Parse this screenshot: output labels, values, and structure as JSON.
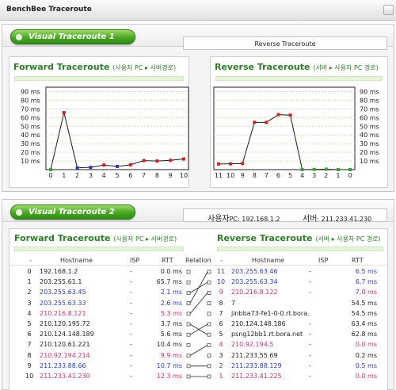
{
  "window": {
    "title": "BenchBee Traceroute"
  },
  "top_panel": {
    "tab_label": "Visual Traceroute 1",
    "right_box": "Reverse Traceroute",
    "forward_chart": {
      "title": "Forward Traceroute",
      "subtitle": "(사용자 PC ▸ 서버경로)"
    },
    "reverse_chart": {
      "title": "Reverse Traceroute",
      "subtitle": "(서버 ▸ 사용자 PC 경로)"
    }
  },
  "bottom_panel": {
    "tab_label": "Visual Traceroute 2",
    "user_label": "사용자",
    "user_value": "PC: 192.168.1.2",
    "server_label": "서버",
    "server_value": ": 211.233.41.230",
    "forward_title": "Forward Traceroute",
    "forward_sub": "(사용자 PC ▸ 서버경로)",
    "reverse_title": "Reverse Traceroute",
    "reverse_sub": "(서버 ▸ 사용자 PC 경로)",
    "headers": [
      "-",
      "Hostname",
      "ISP",
      "RTT",
      "Relation",
      "-",
      "Hostname",
      "ISP",
      "RTT"
    ],
    "forward_rows": [
      {
        "n": "0",
        "host": "192.168.1.2",
        "isp": "-",
        "rtt": "0.0 ms",
        "color": "#222222"
      },
      {
        "n": "1",
        "host": "203.255.61.1",
        "isp": "-",
        "rtt": "65.7 ms",
        "color": "#222222"
      },
      {
        "n": "2",
        "host": "203.255.63.45",
        "isp": "-",
        "rtt": "2.1 ms",
        "color": "#2c3fb0"
      },
      {
        "n": "3",
        "host": "203.255.63.33",
        "isp": "-",
        "rtt": "2.6 ms",
        "color": "#2c3fb0"
      },
      {
        "n": "4",
        "host": "210.216.8.121",
        "isp": "-",
        "rtt": "5.3 ms",
        "color": "#d0306a"
      },
      {
        "n": "5",
        "host": "210.120.195.72",
        "isp": "-",
        "rtt": "3.7 ms",
        "color": "#222222"
      },
      {
        "n": "6",
        "host": "210.124.148.189",
        "isp": "-",
        "rtt": "5.6 ms",
        "color": "#222222"
      },
      {
        "n": "7",
        "host": "210.120.61.221",
        "isp": "-",
        "rtt": "10.4 ms",
        "color": "#222222"
      },
      {
        "n": "8",
        "host": "210.92.194.214",
        "isp": "-",
        "rtt": "9.9 ms",
        "color": "#d0306a"
      },
      {
        "n": "9",
        "host": "211.233.88.66",
        "isp": "-",
        "rtt": "10.7 ms",
        "color": "#2c3fb0"
      },
      {
        "n": "10",
        "host": "211.233.41.230",
        "isp": "-",
        "rtt": "12.3 ms",
        "color": "#d0306a"
      }
    ],
    "reverse_rows": [
      {
        "n": "11",
        "host": "203.255.63.46",
        "isp": "-",
        "rtt": "6.5 ms",
        "color": "#2c3fb0"
      },
      {
        "n": "10",
        "host": "203.255.63.34",
        "isp": "-",
        "rtt": "6.7 ms",
        "color": "#2c3fb0"
      },
      {
        "n": "9",
        "host": "210.216.8.122",
        "isp": "-",
        "rtt": "7.0 ms",
        "color": "#d0306a"
      },
      {
        "n": "8",
        "host": "7",
        "isp": "",
        "rtt": "54.5 ms",
        "color": "#222222"
      },
      {
        "n": "7",
        "host": "jinbba73-fe1-0-0.rt.bora.",
        "isp": "",
        "rtt": "54.5 ms",
        "color": "#222222"
      },
      {
        "n": "6",
        "host": "210.124.148.186",
        "isp": "-",
        "rtt": "63.4 ms",
        "color": "#222222"
      },
      {
        "n": "5",
        "host": "psng12bb1.rt.bora.net",
        "isp": "-",
        "rtt": "62.8 ms",
        "color": "#222222"
      },
      {
        "n": "4",
        "host": "210.92.194.5",
        "isp": "-",
        "rtt": "0.0 ms",
        "color": "#d0306a"
      },
      {
        "n": "3",
        "host": "211.233.55.69",
        "isp": "-",
        "rtt": "0.2 ms",
        "color": "#222222"
      },
      {
        "n": "2",
        "host": "211.233.88.129",
        "isp": "-",
        "rtt": "0.5 ms",
        "color": "#2c3fb0"
      },
      {
        "n": "1",
        "host": "211.233.41.225",
        "isp": "-",
        "rtt": "0.0 ms",
        "color": "#d0306a"
      }
    ]
  },
  "chart_data": [
    {
      "type": "line",
      "title": "Forward Traceroute",
      "x": [
        "0",
        "1",
        "2",
        "3",
        "4",
        "5",
        "6",
        "7",
        "8",
        "9",
        "10"
      ],
      "values": [
        0,
        65.7,
        2.1,
        2.6,
        5.3,
        3.7,
        5.6,
        10.4,
        9.9,
        10.7,
        12.3
      ],
      "marker_colors": [
        "#2fa72f",
        "#cc2222",
        "#2c3fb0",
        "#2c3fb0",
        "#cc2222",
        "#2c3fb0",
        "#cc2222",
        "#cc2222",
        "#cc2222",
        "#cc2222",
        "#cc2222"
      ],
      "yticks": [
        "10 ms",
        "20 ms",
        "30 ms",
        "40 ms",
        "50 ms",
        "60 ms",
        "70 ms",
        "80 ms",
        "90 ms"
      ],
      "ylim": [
        0,
        95
      ],
      "axis_side": "left",
      "grid": true,
      "line_color": "#1a1a1a"
    },
    {
      "type": "line",
      "title": "Reverse Traceroute",
      "x": [
        "11",
        "10",
        "9",
        "8",
        "7",
        "6",
        "5",
        "4",
        "3",
        "2",
        "1",
        "0"
      ],
      "values": [
        6.5,
        6.7,
        7.0,
        54.5,
        54.5,
        63.4,
        62.8,
        0.0,
        0.2,
        0.5,
        0.0,
        0.0
      ],
      "marker_colors": [
        "#cc2222",
        "#cc2222",
        "#cc2222",
        "#cc2222",
        "#cc2222",
        "#cc2222",
        "#cc2222",
        "#2fa72f",
        "#2fa72f",
        "#2fa72f",
        "#2fa72f",
        "#2fa72f"
      ],
      "yticks": [
        "10 ms",
        "20 ms",
        "30 ms",
        "40 ms",
        "50 ms",
        "60 ms",
        "70 ms",
        "80 ms",
        "90 ms"
      ],
      "ylim": [
        0,
        95
      ],
      "axis_side": "right",
      "grid": true,
      "line_color": "#1a1a1a"
    }
  ]
}
